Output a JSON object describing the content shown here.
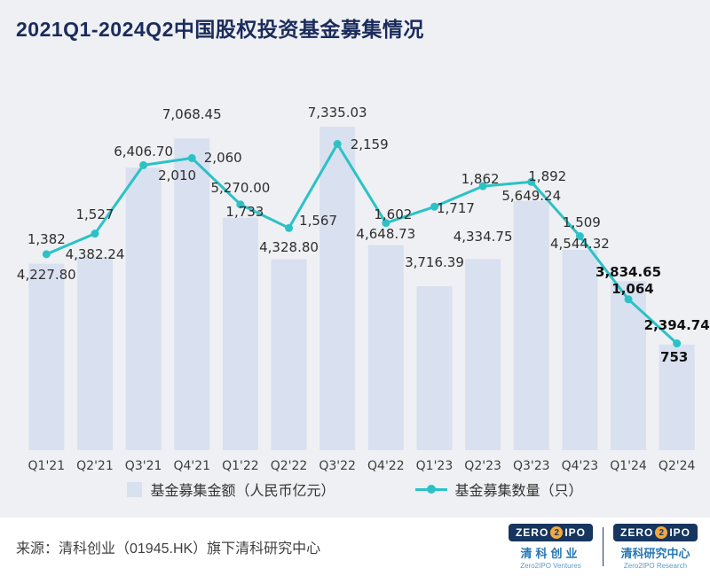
{
  "chart_data": {
    "type": "bar+line",
    "title": "2021Q1-2024Q2中国股权投资基金募集情况",
    "categories": [
      "Q1'21",
      "Q2'21",
      "Q3'21",
      "Q4'21",
      "Q1'22",
      "Q2'22",
      "Q3'22",
      "Q4'22",
      "Q1'23",
      "Q2'23",
      "Q3'23",
      "Q4'23",
      "Q1'24",
      "Q2'24"
    ],
    "series": [
      {
        "name": "基金募集金额（人民币亿元）",
        "type": "bar",
        "values": [
          4227.8,
          4382.24,
          6406.7,
          7068.45,
          5270.0,
          4328.8,
          7335.03,
          4648.73,
          3716.39,
          4334.75,
          5649.24,
          4544.32,
          3834.65,
          2394.74
        ]
      },
      {
        "name": "基金募集数量（只）",
        "type": "line",
        "values": [
          1382,
          1527,
          2010,
          2060,
          1733,
          1567,
          2159,
          1602,
          1717,
          1862,
          1892,
          1509,
          1064,
          753
        ]
      }
    ],
    "colors": {
      "bar": "#d9e0ef",
      "line": "#2bc2c6",
      "label": "#2e2e2e",
      "label_bold": "#111111",
      "axis": "#3d3d3d",
      "title": "#1b2b5c"
    },
    "grid": false,
    "legend_position": "bottom"
  },
  "footer": {
    "source": "来源：清科创业（01945.HK）旗下清科研究中心"
  },
  "logos": [
    {
      "zero": "ZERO",
      "two": "2",
      "ipo": "IPO",
      "name_cn": "清科创业",
      "name_en": "Zero2IPO Ventures"
    },
    {
      "zero": "ZERO",
      "two": "2",
      "ipo": "IPO",
      "name_cn": "清科研究中心",
      "name_en": "Zero2IPO Research"
    }
  ]
}
